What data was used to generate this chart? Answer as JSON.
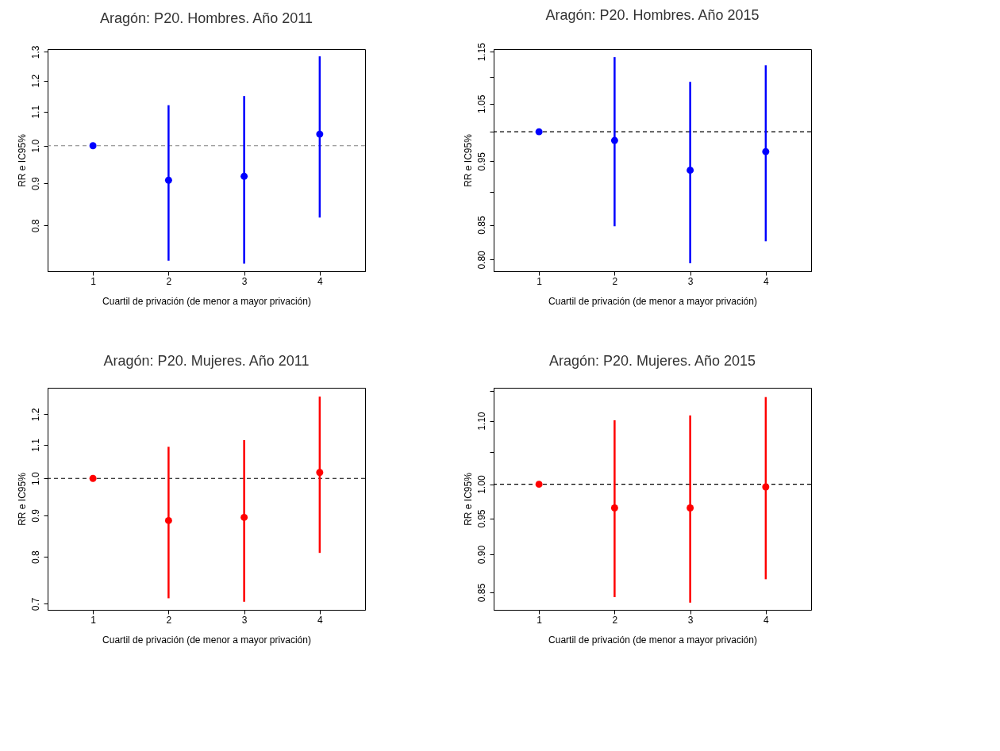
{
  "chart_data": [
    {
      "type": "scatter",
      "title": "Aragón: P20. Hombres. Año 2011",
      "xlabel": "Cuartil de privación (de menor a mayor privación)",
      "ylabel": "RR e IC95%",
      "categories": [
        "1",
        "2",
        "3",
        "4"
      ],
      "log": "y",
      "grid": false,
      "legend": false,
      "marker": "circle",
      "ylim": [
        0.704,
        1.31
      ],
      "yticks": [
        0.8,
        0.9,
        {
          "value": 1.0,
          "label": "1.0"
        },
        1.1,
        1.2,
        1.3
      ],
      "series": [
        {
          "color": "#0000ff",
          "values": [
            1.0,
            0.908,
            0.918,
            1.033
          ],
          "errors": [
            null,
            [
              0.725,
              1.12
            ],
            [
              0.719,
              1.149
            ],
            [
              0.818,
              1.284
            ]
          ]
        }
      ],
      "ref_lines": [
        {
          "axis": "y",
          "value": 1.0,
          "line_style": "dashed",
          "color": "#808080"
        }
      ]
    },
    {
      "type": "scatter",
      "title": "Aragón: P20. Hombres. Año 2015",
      "xlabel": "Cuartil de privación (de menor a mayor privación)",
      "ylabel": "RR e IC95%",
      "categories": [
        "1",
        "2",
        "3",
        "4"
      ],
      "log": "y",
      "grid": false,
      "legend": false,
      "marker": "circle",
      "ylim": [
        0.784,
        1.155
      ],
      "yticks": [
        {
          "value": 0.8,
          "label": "0.80"
        },
        0.85,
        {
          "value": 0.9,
          "label": null
        },
        0.95,
        {
          "value": 1.0,
          "label": null
        },
        1.05,
        {
          "value": 1.1,
          "label": null
        },
        1.15
      ],
      "series": [
        {
          "color": "#0000ff",
          "values": [
            1.0,
            0.985,
            0.935,
            0.966
          ],
          "errors": [
            null,
            [
              0.848,
              1.139
            ],
            [
              0.795,
              1.091
            ],
            [
              0.826,
              1.123
            ]
          ]
        }
      ],
      "ref_lines": [
        {
          "axis": "y",
          "value": 1.0,
          "line_style": "dashed",
          "color": "#000000"
        }
      ]
    },
    {
      "type": "scatter",
      "title": "Aragón: P20. Mujeres. Año 2011",
      "xlabel": "Cuartil de privación (de menor a mayor privación)",
      "ylabel": "RR e IC95%",
      "categories": [
        "1",
        "2",
        "3",
        "4"
      ],
      "log": "y",
      "grid": false,
      "legend": false,
      "marker": "circle",
      "ylim": [
        0.688,
        1.294
      ],
      "yticks": [
        0.7,
        0.8,
        0.9,
        {
          "value": 1.0,
          "label": "1.0"
        },
        1.1,
        1.2
      ],
      "series": [
        {
          "color": "#ff0000",
          "values": [
            1.0,
            0.887,
            0.895,
            1.017
          ],
          "errors": [
            null,
            [
              0.711,
              1.094
            ],
            [
              0.704,
              1.115
            ],
            [
              0.809,
              1.262
            ]
          ]
        }
      ],
      "ref_lines": [
        {
          "axis": "y",
          "value": 1.0,
          "line_style": "dashed",
          "color": "#000000"
        }
      ]
    },
    {
      "type": "scatter",
      "title": "Aragón: P20. Mujeres. Año 2015",
      "xlabel": "Cuartil de privación (de menor a mayor privación)",
      "ylabel": "RR e IC95%",
      "categories": [
        "1",
        "2",
        "3",
        "4"
      ],
      "log": "y",
      "grid": false,
      "legend": false,
      "marker": "circle",
      "ylim": [
        0.828,
        1.156
      ],
      "yticks": [
        0.85,
        {
          "value": 0.9,
          "label": "0.90"
        },
        0.95,
        {
          "value": 1.0,
          "label": "1.00"
        },
        {
          "value": 1.05,
          "label": null
        },
        {
          "value": 1.1,
          "label": "1.10"
        },
        {
          "value": 1.15,
          "label": null
        }
      ],
      "series": [
        {
          "color": "#ff0000",
          "values": [
            1.0,
            0.965,
            0.965,
            0.996
          ],
          "errors": [
            null,
            [
              0.844,
              1.101
            ],
            [
              0.837,
              1.109
            ],
            [
              0.867,
              1.14
            ]
          ]
        }
      ],
      "ref_lines": [
        {
          "axis": "y",
          "value": 1.0,
          "line_style": "dashed",
          "color": "#000000"
        }
      ]
    }
  ]
}
